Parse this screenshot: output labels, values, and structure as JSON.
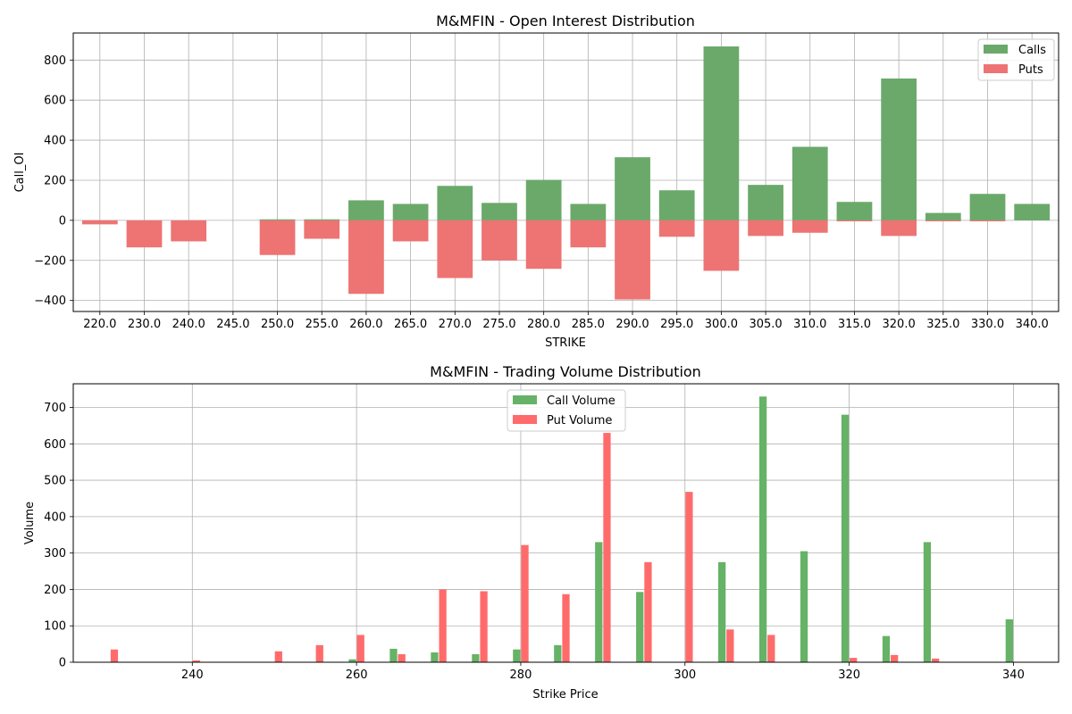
{
  "chart_data": [
    {
      "type": "bar",
      "title": "M&MFIN - Open Interest Distribution",
      "xlabel": "STRIKE",
      "ylabel": "Call_OI",
      "categories": [
        "220.0",
        "230.0",
        "240.0",
        "245.0",
        "250.0",
        "255.0",
        "260.0",
        "265.0",
        "270.0",
        "275.0",
        "280.0",
        "285.0",
        "290.0",
        "295.0",
        "300.0",
        "305.0",
        "310.0",
        "315.0",
        "320.0",
        "325.0",
        "330.0",
        "340.0"
      ],
      "yticks": [
        -400,
        -200,
        0,
        200,
        400,
        600,
        800
      ],
      "ylim": [
        -455,
        935
      ],
      "grid": true,
      "legend_position": "upper right",
      "series": [
        {
          "name": "Calls",
          "color": "#6aa96a",
          "values": [
            0,
            0,
            0,
            0,
            5,
            5,
            100,
            82,
            172,
            87,
            202,
            82,
            315,
            150,
            868,
            177,
            367,
            92,
            708,
            37,
            132,
            82
          ]
        },
        {
          "name": "Puts",
          "color": "#ee7373",
          "values": [
            -20,
            -135,
            -105,
            0,
            -173,
            -92,
            -367,
            -105,
            -288,
            -200,
            -242,
            -135,
            -395,
            -82,
            -252,
            -78,
            -62,
            -5,
            -78,
            -5,
            -5,
            0
          ]
        }
      ]
    },
    {
      "type": "bar",
      "title": "M&MFIN - Trading Volume Distribution",
      "xlabel": "Strike Price",
      "ylabel": "Volume",
      "x": [
        230,
        240,
        245,
        250,
        255,
        260,
        265,
        270,
        275,
        280,
        285,
        290,
        295,
        300,
        305,
        310,
        315,
        320,
        325,
        330,
        340
      ],
      "xticks": [
        240,
        260,
        280,
        300,
        320,
        340
      ],
      "xlim": [
        225.5,
        345.5
      ],
      "yticks": [
        0,
        100,
        200,
        300,
        400,
        500,
        600,
        700
      ],
      "ylim": [
        0,
        765
      ],
      "grid": true,
      "legend_position": "upper center",
      "series": [
        {
          "name": "Call Volume",
          "color": "#66b266",
          "values": [
            0,
            0,
            0,
            0,
            0,
            8,
            37,
            27,
            22,
            35,
            47,
            330,
            193,
            0,
            275,
            730,
            305,
            680,
            72,
            330,
            118
          ]
        },
        {
          "name": "Put Volume",
          "color": "#ff6b6b",
          "values": [
            35,
            5,
            0,
            30,
            47,
            75,
            22,
            200,
            195,
            322,
            187,
            630,
            275,
            468,
            90,
            75,
            0,
            12,
            20,
            10,
            0
          ]
        }
      ]
    }
  ]
}
